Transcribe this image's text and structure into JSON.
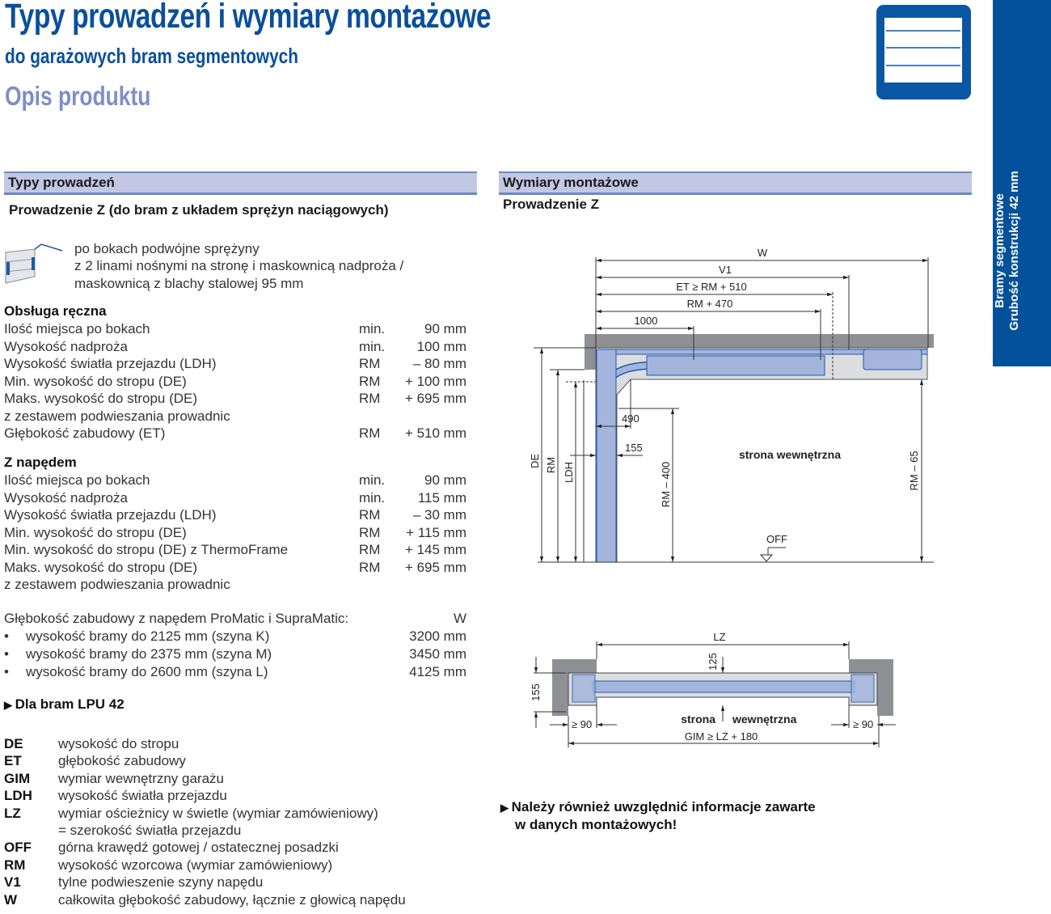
{
  "header": {
    "title": "Typy prowadzeń i wymiary montażowe",
    "subtitle": "do garażowych bram segmentowych",
    "section": "Opis produktu"
  },
  "sidebar": {
    "line1": "Bramy segmentowe",
    "line2": "Grubość konstrukcji 42 mm",
    "color": "#03519b"
  },
  "left": {
    "bar_title": "Typy prowadzeń",
    "subtitle": "Prowadzenie Z (do bram z układem sprężyn naciągowych)",
    "desc": [
      "po bokach podwójne sprężyny",
      "z 2 linami nośnymi na stronę i maskownicą nadproża /",
      "maskownicą z blachy stalowej 95 mm"
    ],
    "manual": {
      "heading": "Obsługa ręczna",
      "rows": [
        {
          "label": "Ilość miejsca po bokach",
          "q": "min.",
          "v": "90 mm"
        },
        {
          "label": "Wysokość nadproża",
          "q": "min.",
          "v": "100 mm"
        },
        {
          "label": "Wysokość światła przejazdu  (LDH)",
          "q": "RM",
          "v": "– 80 mm"
        },
        {
          "label": "Min. wysokość do stropu (DE)",
          "q": "RM",
          "v": "+ 100 mm"
        },
        {
          "label": "Maks. wysokość do stropu (DE)",
          "q": "RM",
          "v": "+ 695 mm"
        },
        {
          "label": "z zestawem podwieszania prowadnic",
          "q": "",
          "v": ""
        },
        {
          "label": "Głębokość zabudowy (ET)",
          "q": "RM",
          "v": "+ 510 mm"
        }
      ]
    },
    "drive": {
      "heading": "Z napędem",
      "rows": [
        {
          "label": "Ilość miejsca po bokach",
          "q": "min.",
          "v": "90 mm"
        },
        {
          "label": "Wysokość nadproża",
          "q": "min.",
          "v": "115 mm"
        },
        {
          "label": "Wysokość światła przejazdu  (LDH)",
          "q": "RM",
          "v": "– 30 mm"
        },
        {
          "label": "Min. wysokość do stropu (DE)",
          "q": "RM",
          "v": "+ 115 mm"
        },
        {
          "label": "Min. wysokość do stropu (DE) z ThermoFrame",
          "q": "RM",
          "v": "+ 145 mm"
        },
        {
          "label": "Maks. wysokość do stropu (DE)",
          "q": "RM",
          "v": "+ 695 mm"
        },
        {
          "label": "z zestawem podwieszania prowadnic",
          "q": "",
          "v": ""
        }
      ]
    },
    "depth": {
      "label": "Głębokość zabudowy z napędem ProMatic i SupraMatic:",
      "col": "W",
      "rows": [
        {
          "label": "wysokość bramy do 2125 mm (szyna K)",
          "v": "3200 mm"
        },
        {
          "label": "wysokość bramy do 2375 mm (szyna M)",
          "v": "3450 mm"
        },
        {
          "label": "wysokość bramy do 2600 mm (szyna L)",
          "v": "4125 mm"
        }
      ]
    },
    "link": "Dla bram LPU 42",
    "legend": [
      {
        "k": "DE",
        "d": "wysokość do stropu"
      },
      {
        "k": "ET",
        "d": "głębokość zabudowy"
      },
      {
        "k": "GIM",
        "d": "wymiar wewnętrzny garażu"
      },
      {
        "k": "LDH",
        "d": "wysokość światła przejazdu"
      },
      {
        "k": "LZ",
        "d": "wymiar ościeżnicy w świetle (wymiar zamówieniowy)"
      },
      {
        "k": "",
        "d": "= szerokość światła przejazdu"
      },
      {
        "k": "OFF",
        "d": "górna krawędź gotowej / ostatecznej posadzki"
      },
      {
        "k": "RM",
        "d": "wysokość wzorcowa (wymiar zamówieniowy)"
      },
      {
        "k": "V1",
        "d": "tylne podwieszenie szyny napędu"
      },
      {
        "k": "W",
        "d": "całkowita głębokość zabudowy, łącznie z głowicą napędu"
      }
    ]
  },
  "right": {
    "bar_title": "Wymiary montażowe",
    "subtitle": "Prowadzenie Z",
    "diagram": {
      "W": "W",
      "V1": "V1",
      "ET": "ET ≥ RM + 510",
      "RM470": "RM + 470",
      "d1000": "1000",
      "d490": "490",
      "d155": "155",
      "DE": "DE",
      "RM": "RM",
      "LDH": "LDH",
      "RM400": "RM – 400",
      "RM65": "RM – 65",
      "inside": "strona wewnętrzna",
      "OFF": "OFF"
    },
    "plan": {
      "LZ": "LZ",
      "d125": "125",
      "d155": "155",
      "g90a": "≥ 90",
      "g90b": "≥ 90",
      "strona": "strona",
      "wewn": "wewnętrzna",
      "GIM": "GIM ≥ LZ + 180"
    },
    "note": [
      "Należy również uwzględnić informacje zawarte",
      "w danych montażowych!"
    ]
  },
  "colors": {
    "brand": "#0a4f9b",
    "bar": "#c2c8e4",
    "rail": "#a4b4dc",
    "wall": "#8f9093"
  }
}
